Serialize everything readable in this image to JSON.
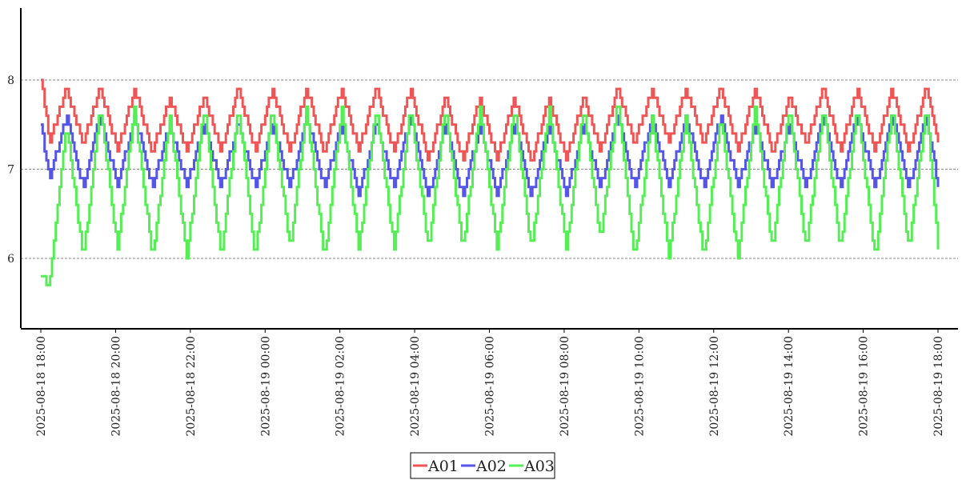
{
  "chart_data": {
    "type": "line",
    "title": "",
    "xlabel": "",
    "ylabel": "",
    "x_unit": "minutes since 2025-08-18 18:00",
    "xlim": [
      0,
      1440
    ],
    "ylim": [
      5.25,
      8.8
    ],
    "grid": "horizontal dashed",
    "yticks": [
      6,
      7,
      8
    ],
    "xtick_minutes": [
      0,
      120,
      240,
      360,
      480,
      600,
      720,
      840,
      960,
      1080,
      1200,
      1320,
      1440
    ],
    "xtick_labels": [
      "2025-08-18 18:00",
      "2025-08-18 20:00",
      "2025-08-18 22:00",
      "2025-08-19 00:00",
      "2025-08-19 02:00",
      "2025-08-19 04:00",
      "2025-08-19 06:00",
      "2025-08-19 08:00",
      "2025-08-19 10:00",
      "2025-08-19 12:00",
      "2025-08-19 14:00",
      "2025-08-19 16:00",
      "2025-08-19 18:00"
    ],
    "legend_position": "bottom-center",
    "trough_minutes": [
      14,
      68,
      123,
      179,
      234,
      289,
      344,
      400,
      455,
      510,
      567,
      622,
      677,
      732,
      787,
      843,
      898,
      953,
      1008,
      1064,
      1119,
      1174,
      1228,
      1283,
      1339,
      1393
    ],
    "peak_minutes": [
      41,
      95,
      150,
      207,
      262,
      317,
      371,
      426,
      483,
      538,
      593,
      649,
      705,
      760,
      816,
      871,
      926,
      981,
      1035,
      1091,
      1146,
      1201,
      1256,
      1310,
      1366,
      1421
    ],
    "series": [
      {
        "name": "A01",
        "color": "#f05555",
        "start": 8.0,
        "end": 7.3,
        "troughs": [
          7.3,
          7.3,
          7.2,
          7.2,
          7.2,
          7.2,
          7.2,
          7.2,
          7.2,
          7.2,
          7.2,
          7.1,
          7.1,
          7.1,
          7.1,
          7.1,
          7.2,
          7.3,
          7.3,
          7.3,
          7.2,
          7.2,
          7.3,
          7.2,
          7.2,
          7.2
        ],
        "peaks": [
          7.9,
          7.9,
          7.9,
          7.8,
          7.8,
          7.9,
          7.9,
          7.9,
          7.9,
          7.9,
          7.9,
          7.8,
          7.8,
          7.8,
          7.8,
          7.8,
          7.9,
          7.9,
          7.9,
          7.9,
          7.9,
          7.8,
          7.9,
          7.9,
          7.9,
          7.9
        ]
      },
      {
        "name": "A02",
        "color": "#5555e8",
        "start": 7.5,
        "end": 6.8,
        "troughs": [
          6.9,
          6.8,
          6.8,
          6.8,
          6.8,
          6.8,
          6.8,
          6.8,
          6.8,
          6.7,
          6.8,
          6.7,
          6.7,
          6.7,
          6.7,
          6.7,
          6.8,
          6.8,
          6.8,
          6.8,
          6.8,
          6.8,
          6.8,
          6.8,
          6.8,
          6.8
        ],
        "peaks": [
          7.6,
          7.6,
          7.6,
          7.5,
          7.5,
          7.5,
          7.5,
          7.6,
          7.5,
          7.5,
          7.6,
          7.5,
          7.5,
          7.5,
          7.5,
          7.5,
          7.6,
          7.6,
          7.6,
          7.6,
          7.5,
          7.5,
          7.6,
          7.6,
          7.6,
          7.6
        ]
      },
      {
        "name": "A03",
        "color": "#55ee55",
        "start": 5.8,
        "end": 6.1,
        "troughs": [
          5.7,
          6.0,
          6.1,
          6.0,
          6.0,
          6.0,
          6.0,
          6.1,
          6.0,
          6.1,
          6.1,
          6.1,
          6.1,
          6.1,
          6.1,
          6.1,
          6.2,
          6.0,
          6.0,
          6.0,
          6.0,
          6.1,
          6.1,
          6.1,
          6.0,
          6.1
        ],
        "peaks": [
          7.5,
          7.7,
          7.7,
          7.6,
          7.7,
          7.7,
          7.7,
          7.7,
          7.7,
          7.7,
          7.7,
          7.7,
          7.7,
          7.7,
          7.7,
          7.7,
          7.8,
          7.6,
          7.6,
          7.6,
          7.7,
          7.7,
          7.7,
          7.7,
          7.7,
          7.7
        ]
      }
    ]
  }
}
